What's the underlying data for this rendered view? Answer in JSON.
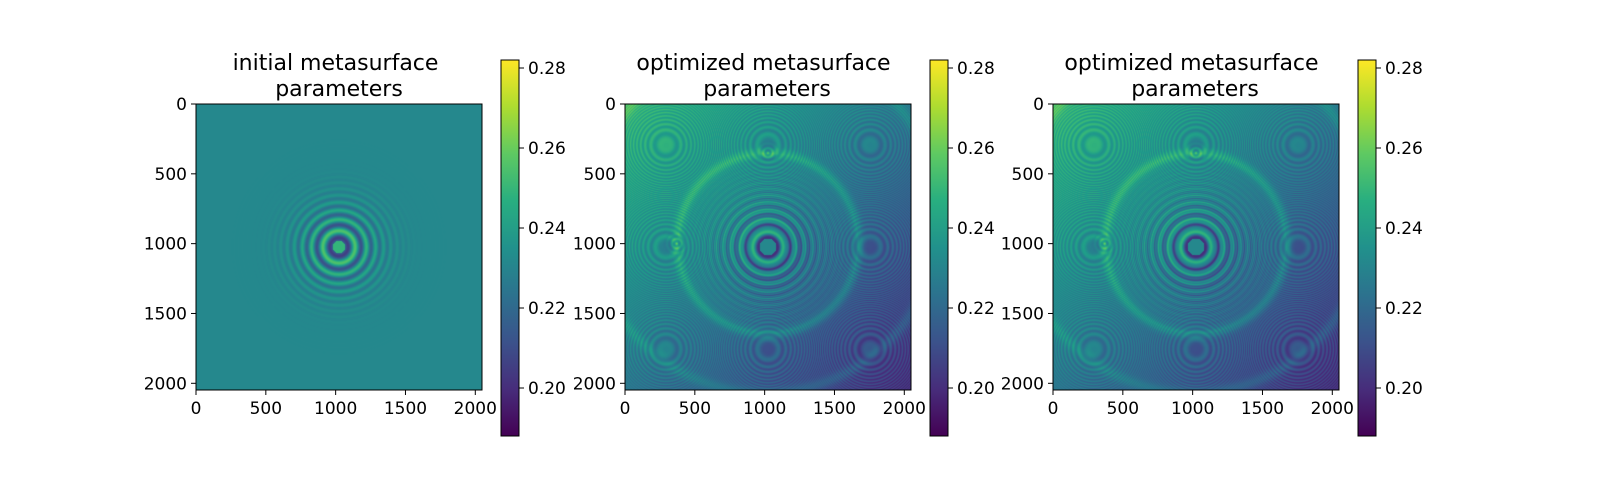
{
  "chart_data": [
    {
      "type": "heatmap",
      "title": "initial metasurface\nparameters",
      "xlabel": "",
      "ylabel": "",
      "xlim": [
        0,
        2048
      ],
      "ylim": [
        2048,
        0
      ],
      "x_ticks": [
        0,
        500,
        1000,
        1500,
        2000
      ],
      "y_ticks": [
        0,
        500,
        1000,
        1500,
        2000
      ],
      "colormap": "viridis",
      "colorbar": {
        "range": [
          0.188,
          0.282
        ],
        "ticks": [
          "0.20",
          "0.22",
          "0.24",
          "0.26",
          "0.28"
        ]
      },
      "pattern": {
        "center": [
          1024,
          1024
        ],
        "background_value": 0.232,
        "ring_amplitude": 0.028,
        "ring_decay_radius": 280
      }
    },
    {
      "type": "heatmap",
      "title": "optimized metasurface\nparameters",
      "xlabel": "",
      "ylabel": "",
      "xlim": [
        0,
        2048
      ],
      "ylim": [
        2048,
        0
      ],
      "x_ticks": [
        0,
        500,
        1000,
        1500,
        2000
      ],
      "y_ticks": [
        0,
        500,
        1000,
        1500,
        2000
      ],
      "colormap": "viridis",
      "colorbar": {
        "range": [
          0.188,
          0.282
        ],
        "ticks": [
          "0.20",
          "0.22",
          "0.24",
          "0.26",
          "0.28"
        ]
      },
      "pattern": {
        "center": [
          1024,
          1024
        ],
        "large_ring_center": [
          1024,
          1000
        ],
        "large_ring_radius": 650,
        "upper_left_value": 0.25,
        "lower_right_value": 0.205
      }
    },
    {
      "type": "heatmap",
      "title": "optimized metasurface\nparameters",
      "xlabel": "",
      "ylabel": "",
      "xlim": [
        0,
        2048
      ],
      "ylim": [
        2048,
        0
      ],
      "x_ticks": [
        0,
        500,
        1000,
        1500,
        2000
      ],
      "y_ticks": [
        0,
        500,
        1000,
        1500,
        2000
      ],
      "colormap": "viridis",
      "colorbar": {
        "range": [
          0.188,
          0.282
        ],
        "ticks": [
          "0.20",
          "0.22",
          "0.24",
          "0.26",
          "0.28"
        ]
      },
      "pattern": {
        "center": [
          1024,
          1024
        ],
        "large_ring_center": [
          1024,
          1000
        ],
        "large_ring_radius": 650,
        "upper_left_value": 0.25,
        "lower_right_value": 0.205
      }
    }
  ]
}
